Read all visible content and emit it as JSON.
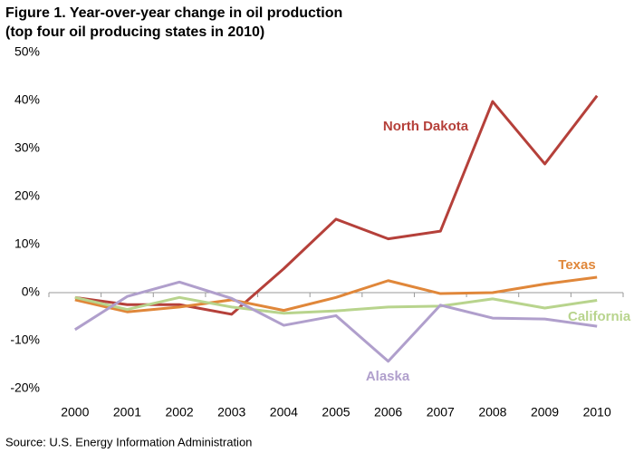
{
  "chart_data": {
    "type": "line",
    "title": "Figure 1.  Year-over-year change in oil production",
    "subtitle": "(top four oil producing states in 2010)",
    "source": "Source:  U.S. Energy Information Administration",
    "categories": [
      "2000",
      "2001",
      "2002",
      "2003",
      "2004",
      "2005",
      "2006",
      "2007",
      "2008",
      "2009",
      "2010"
    ],
    "series": [
      {
        "name": "North Dakota",
        "color": "#b5403a",
        "values": [
          -1,
          -2.5,
          -2.5,
          -4.5,
          5,
          15.3,
          11.2,
          12.8,
          39.8,
          26.8,
          41
        ]
      },
      {
        "name": "Texas",
        "color": "#e0873a",
        "values": [
          -1.5,
          -4,
          -3,
          -1.5,
          -3.7,
          -1,
          2.5,
          -0.2,
          0,
          1.8,
          3.2
        ]
      },
      {
        "name": "California",
        "color": "#b8d48d",
        "values": [
          -1,
          -3.5,
          -1,
          -3,
          -4.3,
          -3.8,
          -3,
          -2.8,
          -1.3,
          -3.2,
          -1.6
        ]
      },
      {
        "name": "Alaska",
        "color": "#b09fcc",
        "values": [
          -7.7,
          -0.8,
          2.2,
          -1.2,
          -6.8,
          -4.8,
          -14.3,
          -2.6,
          -5.3,
          -5.5,
          -7
        ]
      }
    ],
    "ylim": [
      -20,
      50
    ],
    "yticks": [
      {
        "value": -20,
        "label": "-20%"
      },
      {
        "value": -10,
        "label": "-10%"
      },
      {
        "value": 0,
        "label": "0%"
      },
      {
        "value": 10,
        "label": "10%"
      },
      {
        "value": 20,
        "label": "20%"
      },
      {
        "value": 30,
        "label": "30%"
      },
      {
        "value": 40,
        "label": "40%"
      },
      {
        "value": 50,
        "label": "50%"
      }
    ],
    "grid": false
  }
}
